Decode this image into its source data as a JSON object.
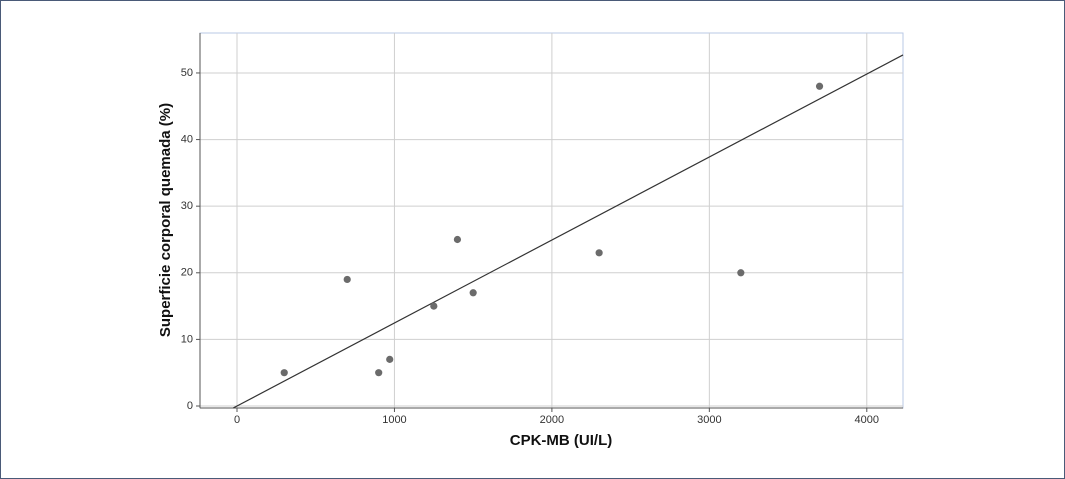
{
  "chart_data": {
    "type": "scatter",
    "x_label": "CPK-MB (UI/L)",
    "y_label": "Superficie corporal quemada (%)",
    "x": [
      300,
      700,
      900,
      970,
      1250,
      1400,
      1500,
      2300,
      3200,
      3700
    ],
    "values": [
      5,
      19,
      5,
      7,
      15,
      25,
      17,
      23,
      20,
      48
    ],
    "color": "#6b6b6b",
    "trendline": {
      "intercept": 0,
      "slope": 0.01246
    },
    "xlim": [
      -235,
      4230
    ],
    "ylim": [
      -0.3,
      56
    ],
    "xticks": [
      0,
      1000,
      2000,
      3000,
      4000
    ],
    "yticks": [
      0,
      10,
      20,
      30,
      40,
      50
    ],
    "grid": true
  }
}
